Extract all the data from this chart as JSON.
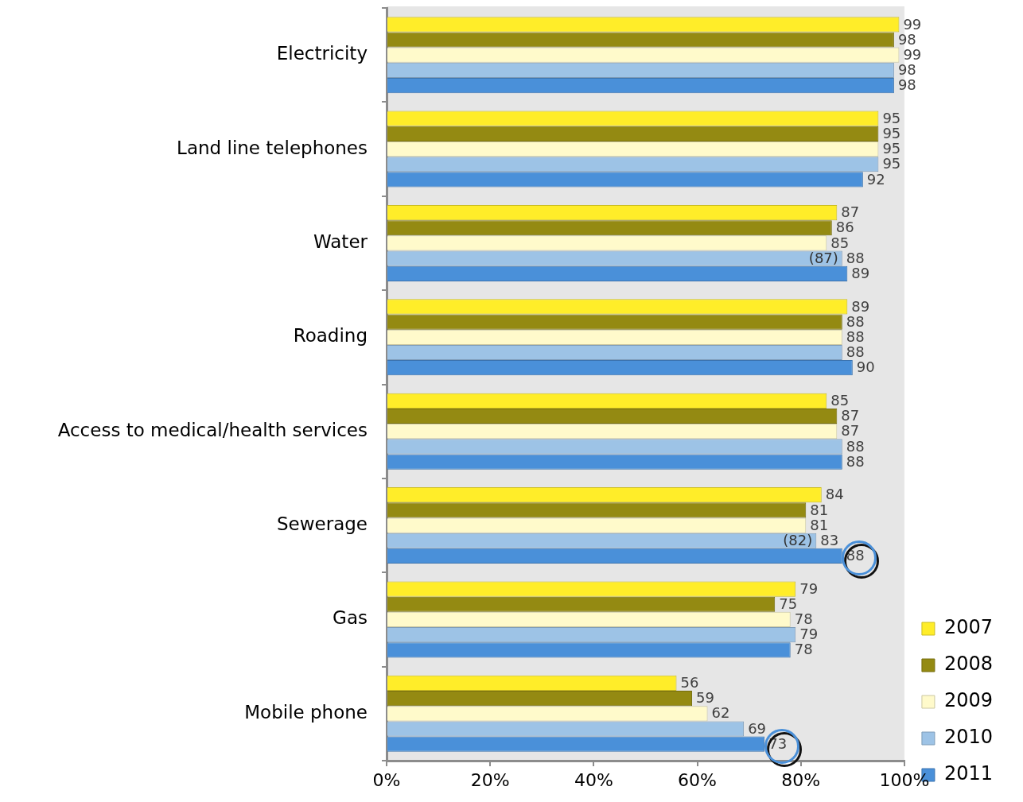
{
  "chart_data": {
    "type": "bar",
    "orientation": "horizontal",
    "categories": [
      "Electricity",
      "Land line telephones",
      "Water",
      "Roading",
      "Access to medical/health services",
      "Sewerage",
      "Gas",
      "Mobile phone"
    ],
    "series": [
      {
        "name": "2007",
        "color": "#ffed29",
        "values": [
          99,
          95,
          87,
          89,
          85,
          84,
          79,
          56
        ]
      },
      {
        "name": "2008",
        "color": "#948a12",
        "values": [
          98,
          95,
          86,
          88,
          87,
          81,
          75,
          59
        ]
      },
      {
        "name": "2009",
        "color": "#fffacb",
        "values": [
          99,
          95,
          85,
          88,
          87,
          81,
          78,
          62
        ]
      },
      {
        "name": "2010",
        "color": "#9dc3e6",
        "values": [
          98,
          95,
          88,
          88,
          88,
          83,
          79,
          69
        ]
      },
      {
        "name": "2011",
        "color": "#4a90d9",
        "values": [
          98,
          92,
          89,
          90,
          88,
          88,
          78,
          73
        ]
      }
    ],
    "xlim": [
      0,
      100
    ],
    "xticks": [
      {
        "value": 0,
        "label": "0%"
      },
      {
        "value": 20,
        "label": "20%"
      },
      {
        "value": 40,
        "label": "40%"
      },
      {
        "value": 60,
        "label": "60%"
      },
      {
        "value": 80,
        "label": "80%"
      },
      {
        "value": 100,
        "label": "100%"
      }
    ],
    "annotations": [
      "(87)",
      "(82)"
    ],
    "data_labels": true,
    "grid": false,
    "legend": "bottom right"
  }
}
